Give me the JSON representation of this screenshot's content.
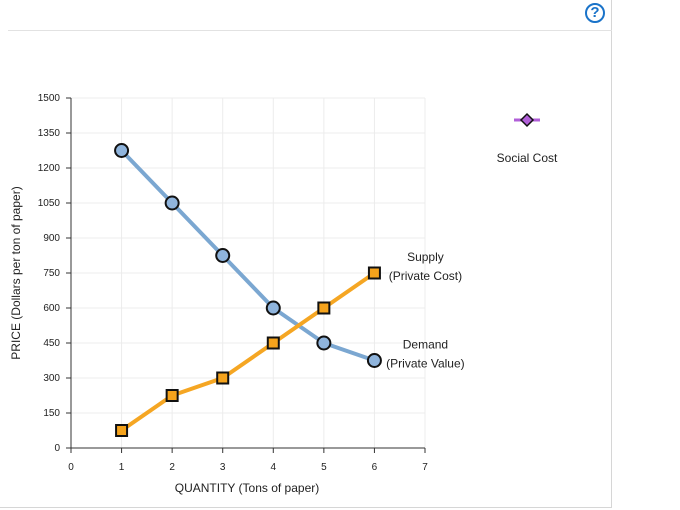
{
  "help_icon": {
    "glyph": "?"
  },
  "chart_data": {
    "type": "line",
    "xlabel": "QUANTITY (Tons of paper)",
    "ylabel": "PRICE (Dollars per ton of paper)",
    "xlim": [
      0,
      7
    ],
    "ylim": [
      0,
      1500
    ],
    "xticks": [
      0,
      1,
      2,
      3,
      4,
      5,
      6,
      7
    ],
    "yticks": [
      0,
      150,
      300,
      450,
      600,
      750,
      900,
      1050,
      1200,
      1350,
      1500
    ],
    "grid": true,
    "series": [
      {
        "name": "Demand",
        "label_lines": [
          "Demand",
          "(Private Value)"
        ],
        "marker": "circle",
        "color": "#7ba7d1",
        "marker_fill": "#8fb4dc",
        "x": [
          1,
          2,
          3,
          4,
          5,
          6
        ],
        "y": [
          1275,
          1050,
          825,
          600,
          450,
          375
        ]
      },
      {
        "name": "Supply",
        "label_lines": [
          "Supply",
          "(Private Cost)"
        ],
        "marker": "square",
        "color": "#f5a623",
        "marker_fill": "#f5a31c",
        "x": [
          1,
          2,
          3,
          4,
          5,
          6
        ],
        "y": [
          75,
          225,
          300,
          450,
          600,
          750
        ]
      }
    ],
    "legend": [
      {
        "name": "Social Cost",
        "marker": "diamond",
        "color": "#b15fd8"
      }
    ]
  }
}
